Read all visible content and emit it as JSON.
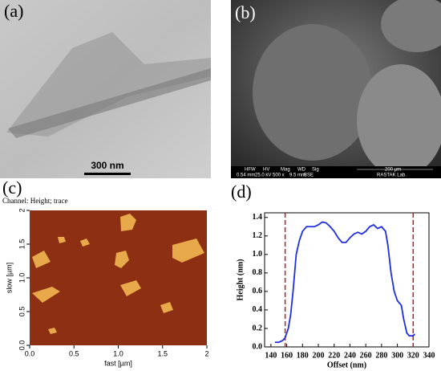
{
  "panels": {
    "a": {
      "label": "(a)",
      "scale_bar": "300 nm"
    },
    "b": {
      "label": "(b)",
      "info_headers": [
        "HFW",
        "HV",
        "Mag",
        "WD",
        "Sig"
      ],
      "info_values": [
        "0.54 mm",
        "25.0 kV",
        "500 x",
        "9.5 mm",
        "BSE"
      ],
      "scale_bar": "200 µm",
      "lab": "RASTAK Lab."
    },
    "c": {
      "label": "(c)",
      "channel": "Channel: Height; trace"
    },
    "d": {
      "label": "(d)"
    }
  },
  "chart_data": [
    {
      "type": "image",
      "xlabel": "fast [µm]",
      "ylabel": "slow [µm]",
      "xlim": [
        0,
        2
      ],
      "ylim": [
        0,
        2
      ],
      "xticks": [
        {
          "value": 0,
          "label": "0.0"
        },
        0.5,
        {
          "value": 1,
          "label": "1.0"
        },
        1.5,
        2
      ],
      "yticks": [
        {
          "value": 0,
          "label": "0.0"
        },
        0.5,
        {
          "value": 1,
          "label": "1.0"
        },
        1.5,
        2
      ]
    },
    {
      "type": "line",
      "xlabel": "Offset (nm)",
      "ylabel": "Height (nm)",
      "color": "#1f2ee0",
      "x": [
        145,
        150,
        155,
        158,
        162,
        165,
        168,
        172,
        176,
        180,
        185,
        190,
        195,
        200,
        205,
        210,
        215,
        220,
        225,
        230,
        235,
        240,
        245,
        250,
        255,
        260,
        265,
        270,
        275,
        280,
        285,
        288,
        292,
        296,
        300,
        305,
        308,
        312,
        315,
        318,
        320,
        322
      ],
      "values": [
        0.05,
        0.05,
        0.07,
        0.1,
        0.2,
        0.35,
        0.6,
        1.0,
        1.15,
        1.25,
        1.3,
        1.3,
        1.3,
        1.32,
        1.35,
        1.34,
        1.3,
        1.25,
        1.18,
        1.13,
        1.13,
        1.18,
        1.22,
        1.24,
        1.22,
        1.25,
        1.3,
        1.32,
        1.28,
        1.3,
        1.25,
        1.1,
        0.8,
        0.6,
        0.5,
        0.45,
        0.3,
        0.15,
        0.12,
        0.12,
        0.12,
        0.14
      ],
      "markers": [
        158,
        320
      ],
      "marker_color": "#b02020",
      "xlim": [
        132,
        340
      ],
      "ylim": [
        0,
        1.45
      ],
      "xticks": [
        140,
        160,
        180,
        200,
        220,
        240,
        260,
        280,
        300,
        320,
        340
      ],
      "yticks": [
        {
          "value": 0,
          "label": "0.0"
        },
        0.2,
        0.4,
        0.6,
        0.8,
        {
          "value": 1,
          "label": "1.0"
        },
        1.2,
        1.4
      ]
    }
  ]
}
